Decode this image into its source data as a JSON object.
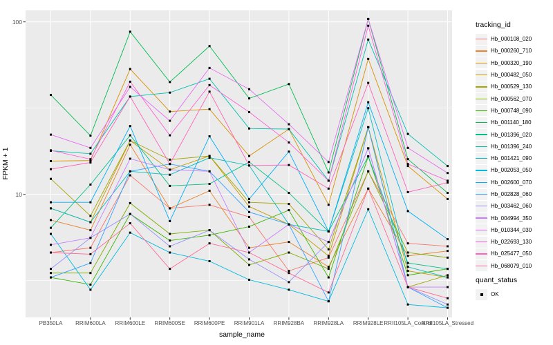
{
  "colors": {
    "panel_bg": "#EBEBEB",
    "grid": "#FFFFFF",
    "marker": "#000000",
    "legend_key_bg": "#F2F2F2",
    "tick_text": "#4d4d4d"
  },
  "chart_data": {
    "type": "line",
    "title": "",
    "xlabel": "sample_name",
    "ylabel": "FPKM + 1",
    "y_scale": "log10",
    "y_ticks": [
      10,
      100
    ],
    "ylim": [
      1.9,
      117
    ],
    "grid": true,
    "legend_position": "right",
    "legend_title": "tracking_id",
    "marker_legend": {
      "title": "quant_status",
      "items": [
        {
          "label": "OK",
          "marker": "black-square"
        }
      ]
    },
    "x_categories": [
      "PB350LA",
      "RRIM600LA",
      "RRIM600LE",
      "RRIM600SE",
      "RRIM600PE",
      "RRIM901LA",
      "RRIM928BA",
      "RRIM928LA",
      "RRIM928LE",
      "RRII105LA_Control",
      "RRII105LA_Stressed"
    ],
    "series": [
      {
        "name": "Hb_000108_020",
        "color": "#F8766D",
        "values": [
          4.6,
          4.9,
          12.9,
          8.3,
          8.7,
          7.4,
          3.6,
          4.3,
          13.6,
          5.2,
          5.0
        ]
      },
      {
        "name": "Hb_000260_710",
        "color": "#EA8331",
        "values": [
          7.1,
          6.2,
          19.4,
          8.3,
          10.5,
          4.9,
          5.3,
          3.8,
          10.8,
          4.4,
          4.7
        ]
      },
      {
        "name": "Hb_000320_190",
        "color": "#D89000",
        "values": [
          15.6,
          15.7,
          53.3,
          30.2,
          31.2,
          16.7,
          23.9,
          8.7,
          61.0,
          14.6,
          9.4
        ]
      },
      {
        "name": "Hb_000482_050",
        "color": "#C09B00",
        "values": [
          8.3,
          6.9,
          20.5,
          13.9,
          16.7,
          8.5,
          6.7,
          4.4,
          24.5,
          3.6,
          3.3
        ]
      },
      {
        "name": "Hb_000529_130",
        "color": "#A3A500",
        "values": [
          12.3,
          7.5,
          20.5,
          15.9,
          16.7,
          9.0,
          8.8,
          4.8,
          24.5,
          2.9,
          3.4
        ]
      },
      {
        "name": "Hb_000562_070",
        "color": "#7CAE00",
        "values": [
          3.5,
          3.5,
          8.9,
          5.9,
          6.2,
          3.9,
          4.6,
          3.7,
          13.6,
          4.6,
          4.3
        ]
      },
      {
        "name": "Hb_000748_090",
        "color": "#39B600",
        "values": [
          3.3,
          3.0,
          7.7,
          5.4,
          5.8,
          6.5,
          8.1,
          3.3,
          16.6,
          3.4,
          3.7
        ]
      },
      {
        "name": "Hb_001140_180",
        "color": "#00BB4E",
        "values": [
          37.7,
          21.9,
          87.7,
          44.8,
          72.4,
          36.0,
          43.6,
          13.4,
          104.0,
          16.0,
          10.2
        ]
      },
      {
        "name": "Hb_001396_020",
        "color": "#00C087",
        "values": [
          6.4,
          11.4,
          22.0,
          11.2,
          11.5,
          15.4,
          10.2,
          6.1,
          16.6,
          4.0,
          3.7
        ]
      },
      {
        "name": "Hb_001396_240",
        "color": "#00C0AF",
        "values": [
          17.9,
          17.2,
          36.9,
          38.9,
          46.8,
          24.1,
          23.9,
          12.0,
          79.0,
          22.4,
          14.6
        ]
      },
      {
        "name": "Hb_001421_090",
        "color": "#00BFC4",
        "values": [
          8.3,
          6.9,
          13.6,
          13.0,
          16.3,
          14.7,
          6.7,
          6.1,
          31.6,
          3.8,
          3.3
        ]
      },
      {
        "name": "Hb_002053_050",
        "color": "#00BAE0",
        "values": [
          5.9,
          2.8,
          6.0,
          4.6,
          4.1,
          3.2,
          2.8,
          2.4,
          8.2,
          2.3,
          2.2
        ]
      },
      {
        "name": "Hb_002600_070",
        "color": "#00B0F6",
        "values": [
          9.0,
          9.0,
          24.9,
          7.0,
          21.7,
          9.4,
          17.7,
          6.1,
          34.2,
          8.0,
          5.5
        ]
      },
      {
        "name": "Hb_002828_060",
        "color": "#35A2FF",
        "values": [
          3.3,
          4.0,
          13.6,
          15.0,
          13.6,
          7.9,
          6.7,
          2.4,
          24.5,
          2.9,
          2.2
        ]
      },
      {
        "name": "Hb_003462_060",
        "color": "#9590FF",
        "values": [
          3.7,
          5.6,
          7.7,
          5.0,
          6.2,
          4.2,
          3.1,
          5.3,
          18.5,
          2.9,
          2.3
        ]
      },
      {
        "name": "Hb_004994_350",
        "color": "#C77CFF",
        "values": [
          5.1,
          5.6,
          16.1,
          13.9,
          13.6,
          4.6,
          6.7,
          5.3,
          18.5,
          2.9,
          2.9
        ]
      },
      {
        "name": "Hb_010344_030",
        "color": "#E76BF3",
        "values": [
          22.2,
          18.6,
          42.0,
          26.7,
          54.1,
          40.7,
          25.5,
          15.4,
          104.0,
          18.6,
          13.3
        ]
      },
      {
        "name": "Hb_022693_130",
        "color": "#FA62DB",
        "values": [
          18.0,
          16.0,
          45.0,
          22.0,
          43.0,
          30.0,
          20.0,
          12.0,
          95.0,
          15.0,
          12.0
        ]
      },
      {
        "name": "Hb_025477_050",
        "color": "#FF62BC",
        "values": [
          14.0,
          15.3,
          36.9,
          15.0,
          39.4,
          14.7,
          14.8,
          10.8,
          44.3,
          10.3,
          11.7
        ]
      },
      {
        "name": "Hb_068079_010",
        "color": "#FF6A98",
        "values": [
          4.6,
          4.5,
          6.8,
          3.7,
          5.2,
          4.6,
          3.5,
          2.7,
          10.8,
          2.9,
          2.5
        ]
      }
    ]
  }
}
